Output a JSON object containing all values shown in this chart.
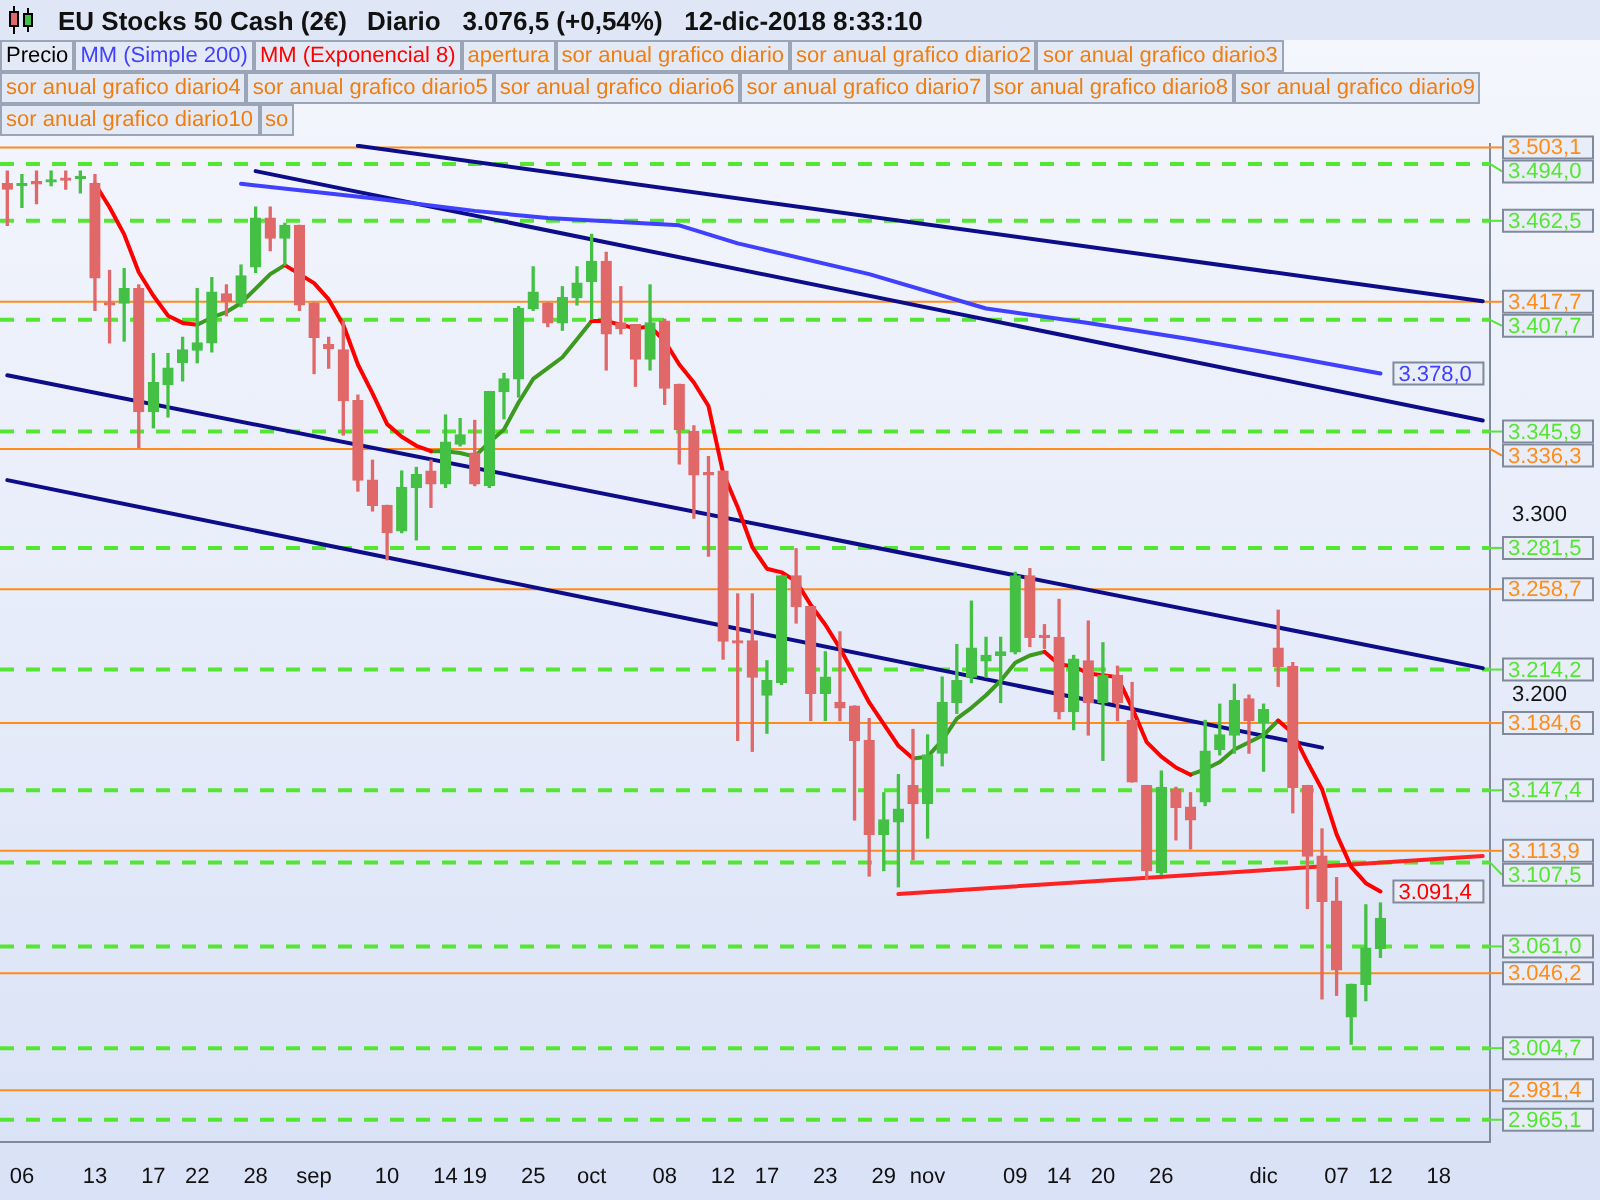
{
  "chart_data": {
    "type": "candlestick",
    "title": "EU Stocks 50 Cash (2€)",
    "subtitle": "Diario   3.076,5 (+0,54%)   12-dic-2018 8:33:10",
    "categories": [
      null,
      "06",
      null,
      null,
      null,
      null,
      "13",
      null,
      null,
      null,
      "17",
      null,
      null,
      "22",
      null,
      null,
      null,
      "28",
      null,
      null,
      null,
      "sep",
      null,
      null,
      null,
      null,
      "10",
      null,
      null,
      null,
      "14",
      null,
      "19",
      null,
      null,
      null,
      "25",
      null,
      null,
      null,
      "oct",
      null,
      null,
      null,
      null,
      "08",
      null,
      null,
      null,
      "12",
      null,
      null,
      "17",
      null,
      null,
      null,
      "23",
      null,
      null,
      null,
      "29",
      null,
      null,
      "nov",
      null,
      null,
      null,
      null,
      null,
      "09",
      null,
      null,
      "14",
      null,
      null,
      "20",
      null,
      null,
      null,
      "26",
      null,
      null,
      null,
      null,
      null,
      null,
      "dic",
      null,
      null,
      null,
      null,
      "07",
      null,
      null,
      "12",
      null,
      null,
      null,
      "18",
      null,
      null,
      null
    ],
    "ylim": [
      2953,
      3505
    ],
    "yticks": [
      {
        "value": 3200,
        "label": "3.200"
      },
      {
        "value": 3300,
        "label": "3.300"
      }
    ],
    "legend": "top left",
    "marker": "none",
    "series": [
      {
        "name": "Precio",
        "ohlc": [
          [
            3483,
            3490,
            3460,
            3480
          ],
          [
            3482,
            3488,
            3470,
            3483
          ],
          [
            3484,
            3490,
            3472,
            3483
          ],
          [
            3484,
            3490,
            3482,
            3485
          ],
          [
            3486,
            3490,
            3480,
            3485
          ],
          [
            3486,
            3490,
            3478,
            3487
          ],
          [
            3483,
            3488,
            3413,
            3431
          ],
          [
            3417,
            3435,
            3395,
            3416
          ],
          [
            3417,
            3436,
            3396,
            3425
          ],
          [
            3425,
            3427,
            3337,
            3357
          ],
          [
            3357,
            3389,
            3348,
            3373
          ],
          [
            3372,
            3389,
            3354,
            3381
          ],
          [
            3384,
            3398,
            3374,
            3391
          ],
          [
            3391,
            3425,
            3384,
            3395
          ],
          [
            3395,
            3431,
            3390,
            3423
          ],
          [
            3422,
            3427,
            3410,
            3418
          ],
          [
            3417,
            3438,
            3415,
            3432
          ],
          [
            3437,
            3470,
            3434,
            3464
          ],
          [
            3464,
            3470,
            3446,
            3453
          ],
          [
            3453,
            3461,
            3438,
            3460
          ],
          [
            3460,
            3460,
            3413,
            3416
          ],
          [
            3417,
            3417,
            3378,
            3398
          ],
          [
            3394,
            3398,
            3381,
            3392
          ],
          [
            3391,
            3407,
            3344,
            3363
          ],
          [
            3363,
            3366,
            3313,
            3319
          ],
          [
            3319,
            3330,
            3302,
            3305
          ],
          [
            3305,
            3305,
            3275,
            3290
          ],
          [
            3291,
            3324,
            3290,
            3315
          ],
          [
            3315,
            3326,
            3286,
            3322
          ],
          [
            3324,
            3330,
            3304,
            3317
          ],
          [
            3317,
            3355,
            3315,
            3340
          ],
          [
            3339,
            3353,
            3338,
            3344
          ],
          [
            3334,
            3352,
            3316,
            3317
          ],
          [
            3316,
            3368,
            3315,
            3368
          ],
          [
            3368,
            3378,
            3353,
            3375
          ],
          [
            3375,
            3415,
            3365,
            3414
          ],
          [
            3414,
            3437,
            3413,
            3423
          ],
          [
            3417,
            3417,
            3404,
            3406
          ],
          [
            3406,
            3426,
            3402,
            3420
          ],
          [
            3420,
            3437,
            3416,
            3428
          ],
          [
            3429,
            3455,
            3408,
            3440
          ],
          [
            3440,
            3445,
            3380,
            3400
          ],
          [
            3406,
            3426,
            3400,
            3403
          ],
          [
            3405,
            3405,
            3371,
            3386
          ],
          [
            3386,
            3427,
            3380,
            3406
          ],
          [
            3407,
            3408,
            3361,
            3370
          ],
          [
            3372,
            3372,
            3328,
            3347
          ],
          [
            3346,
            3349,
            3298,
            3322
          ],
          [
            3323,
            3332,
            3277,
            3322
          ],
          [
            3324,
            3324,
            3220,
            3230
          ],
          [
            3230,
            3256,
            3175,
            3229
          ],
          [
            3230,
            3256,
            3169,
            3210
          ],
          [
            3200,
            3219,
            3179,
            3208
          ],
          [
            3207,
            3266,
            3206,
            3266
          ],
          [
            3266,
            3281,
            3240,
            3249
          ],
          [
            3249,
            3249,
            3186,
            3201
          ],
          [
            3201,
            3224,
            3186,
            3210
          ],
          [
            3196,
            3235,
            3186,
            3193
          ],
          [
            3194,
            3194,
            3131,
            3175
          ],
          [
            3175,
            3187,
            3100,
            3123
          ],
          [
            3123,
            3146,
            3103,
            3131
          ],
          [
            3130,
            3156,
            3094,
            3137
          ],
          [
            3150,
            3181,
            3109,
            3140
          ],
          [
            3140,
            3178,
            3121,
            3167
          ],
          [
            3168,
            3210,
            3161,
            3196
          ],
          [
            3196,
            3228,
            3190,
            3208
          ],
          [
            3210,
            3252,
            3207,
            3226
          ],
          [
            3219,
            3232,
            3210,
            3222
          ],
          [
            3222,
            3232,
            3196,
            3224
          ],
          [
            3224,
            3268,
            3223,
            3266
          ],
          [
            3266,
            3270,
            3227,
            3232
          ],
          [
            3233,
            3239,
            3226,
            3232
          ],
          [
            3232,
            3253,
            3187,
            3191
          ],
          [
            3191,
            3222,
            3181,
            3220
          ],
          [
            3219,
            3241,
            3178,
            3196
          ],
          [
            3196,
            3229,
            3164,
            3211
          ],
          [
            3211,
            3216,
            3186,
            3196
          ],
          [
            3186,
            3207,
            3152,
            3152
          ],
          [
            3150,
            3150,
            3098,
            3103
          ],
          [
            3102,
            3158,
            3101,
            3149
          ],
          [
            3148,
            3149,
            3120,
            3138
          ],
          [
            3138,
            3146,
            3115,
            3131
          ],
          [
            3141,
            3186,
            3139,
            3169
          ],
          [
            3170,
            3195,
            3167,
            3178
          ],
          [
            3178,
            3206,
            3168,
            3197
          ],
          [
            3198,
            3200,
            3168,
            3186
          ],
          [
            3185,
            3195,
            3158,
            3192
          ],
          [
            3226,
            3247,
            3205,
            3216
          ],
          [
            3216,
            3218,
            3135,
            3149
          ],
          [
            3150,
            3150,
            3082,
            3111
          ],
          [
            3111,
            3126,
            3032,
            3086
          ],
          [
            3086,
            3099,
            3034,
            3048
          ],
          [
            3022,
            3040,
            3007,
            3040
          ],
          [
            3040,
            3084,
            3031,
            3060
          ],
          [
            3060,
            3085,
            3055,
            3076.5
          ],
          null,
          null,
          null,
          null,
          null,
          null,
          null
        ],
        "colors": [
          "#e06868",
          "#44c044",
          "#e06868",
          "#44c044",
          "#e06868",
          "#44c044",
          "#e06868",
          "#e06868",
          "#44c044",
          "#e06868",
          "#44c044",
          "#44c044",
          "#44c044",
          "#44c044",
          "#44c044",
          "#e06868",
          "#44c044",
          "#44c044",
          "#e06868",
          "#44c044",
          "#e06868",
          "#e06868",
          "#e06868",
          "#e06868",
          "#e06868",
          "#e06868",
          "#e06868",
          "#44c044",
          "#44c044",
          "#e06868",
          "#44c044",
          "#44c044",
          "#e06868",
          "#44c044",
          "#44c044",
          "#44c044",
          "#44c044",
          "#e06868",
          "#44c044",
          "#44c044",
          "#44c044",
          "#e06868",
          "#e06868",
          "#e06868",
          "#44c044",
          "#e06868",
          "#e06868",
          "#e06868",
          "#e06868",
          "#e06868",
          "#e06868",
          "#e06868",
          "#44c044",
          "#44c044",
          "#e06868",
          "#e06868",
          "#44c044",
          "#e06868",
          "#e06868",
          "#e06868",
          "#44c044",
          "#44c044",
          "#e06868",
          "#44c044",
          "#44c044",
          "#44c044",
          "#44c044",
          "#44c044",
          "#44c044",
          "#44c044",
          "#e06868",
          "#e06868",
          "#e06868",
          "#44c044",
          "#e06868",
          "#44c044",
          "#e06868",
          "#e06868",
          "#e06868",
          "#44c044",
          "#e06868",
          "#e06868",
          "#44c044",
          "#44c044",
          "#44c044",
          "#e06868",
          "#44c044",
          "#e06868",
          "#e06868",
          "#e06868",
          "#e06868",
          "#e06868",
          "#44c044",
          "#44c044",
          "#44c044",
          null,
          null,
          null,
          null,
          null,
          null,
          null
        ]
      },
      {
        "name": "MM (Simple 200)",
        "type": "line",
        "color": "#4040ff",
        "values": [
          null,
          null,
          null,
          null,
          null,
          null,
          null,
          null,
          null,
          null,
          null,
          null,
          null,
          null,
          null,
          null,
          3483,
          null,
          null,
          null,
          null,
          null,
          null,
          null,
          null,
          3475,
          null,
          null,
          null,
          null,
          null,
          null,
          3468,
          null,
          null,
          null,
          null,
          3464,
          null,
          null,
          null,
          null,
          null,
          null,
          null,
          null,
          3460,
          null,
          null,
          null,
          3450,
          null,
          null,
          null,
          null,
          null,
          null,
          null,
          null,
          3433,
          null,
          null,
          null,
          null,
          null,
          null,
          null,
          3414,
          null,
          null,
          null,
          null,
          null,
          null,
          3406,
          null,
          null,
          null,
          null,
          null,
          null,
          3397,
          null,
          null,
          null,
          null,
          null,
          null,
          3387,
          null,
          null,
          null,
          null,
          null,
          3378,
          null,
          null,
          null,
          null,
          null,
          null,
          null
        ],
        "value_labels": [
          null,
          null,
          null,
          null,
          null,
          null,
          null,
          null,
          null,
          null,
          null,
          null,
          null,
          null,
          null,
          null,
          null,
          null,
          null,
          null,
          null,
          null,
          null,
          null,
          null,
          null,
          null,
          null,
          null,
          null,
          null,
          null,
          null,
          null,
          null,
          null,
          null,
          null,
          null,
          null,
          null,
          null,
          null,
          null,
          null,
          null,
          null,
          null,
          null,
          null,
          null,
          null,
          null,
          null,
          null,
          null,
          null,
          null,
          null,
          null,
          null,
          null,
          null,
          null,
          null,
          null,
          null,
          null,
          null,
          null,
          null,
          null,
          null,
          null,
          null,
          null,
          null,
          null,
          null,
          null,
          null,
          null,
          null,
          null,
          null,
          null,
          null,
          null,
          null,
          null,
          null,
          null,
          null,
          null,
          "3.378,0",
          null,
          null,
          null,
          null,
          null,
          null,
          null
        ]
      },
      {
        "name": "MM (Exponencial 8)",
        "type": "line",
        "color": "#ff0000",
        "values": [
          null,
          null,
          null,
          null,
          null,
          null,
          3483,
          3470,
          3455,
          3434,
          3421,
          3410,
          3406,
          3405,
          null,
          null,
          null,
          null,
          null,
          3438,
          3433,
          3428,
          3419,
          3405,
          3383,
          3367,
          3350,
          3343,
          3338,
          3335,
          null,
          null,
          null,
          null,
          null,
          null,
          null,
          null,
          null,
          null,
          3407,
          3407,
          3405,
          3403,
          3404,
          3396,
          3383,
          3373,
          3360,
          3323,
          3304,
          3282,
          3270,
          3268,
          3263,
          3250,
          3239,
          3226,
          3211,
          3196,
          3184,
          3172,
          3165,
          null,
          null,
          null,
          null,
          null,
          null,
          null,
          null,
          3224,
          3217,
          3216,
          3212,
          3211,
          3210,
          3193,
          3174,
          3166,
          3160,
          3156,
          null,
          null,
          null,
          null,
          null,
          3186,
          3179,
          3163,
          3148,
          3123,
          3105,
          3096,
          3091.4,
          null,
          null,
          null,
          null,
          null,
          null,
          null
        ],
        "value_labels": [
          null,
          null,
          null,
          null,
          null,
          null,
          null,
          null,
          null,
          null,
          null,
          null,
          null,
          null,
          null,
          null,
          null,
          null,
          null,
          null,
          null,
          null,
          null,
          null,
          null,
          null,
          null,
          null,
          null,
          null,
          null,
          null,
          null,
          null,
          null,
          null,
          null,
          null,
          null,
          null,
          null,
          null,
          null,
          null,
          null,
          null,
          null,
          null,
          null,
          null,
          null,
          null,
          null,
          null,
          null,
          null,
          null,
          null,
          null,
          null,
          null,
          null,
          null,
          null,
          null,
          null,
          null,
          null,
          null,
          null,
          null,
          null,
          null,
          null,
          null,
          null,
          null,
          null,
          null,
          null,
          null,
          null,
          null,
          null,
          null,
          null,
          null,
          null,
          null,
          null,
          null,
          null,
          null,
          null,
          "3.091,4",
          null,
          null,
          null,
          null,
          null,
          null,
          null
        ]
      },
      {
        "type": "line",
        "color": "#3c9a1e",
        "values": [
          null,
          null,
          null,
          null,
          null,
          null,
          null,
          null,
          null,
          null,
          null,
          null,
          null,
          3405,
          3409,
          3412,
          3417,
          3425,
          3433,
          3438,
          null,
          null,
          null,
          null,
          null,
          null,
          null,
          null,
          null,
          3335,
          3335,
          3334,
          3332,
          3340,
          3347,
          3362,
          3375,
          3381,
          3387,
          3397,
          3407,
          null,
          null,
          null,
          null,
          null,
          null,
          null,
          null,
          null,
          null,
          null,
          null,
          null,
          null,
          null,
          null,
          null,
          null,
          null,
          null,
          null,
          3165,
          3166,
          3175,
          3187,
          3193,
          3200,
          3208,
          3218,
          3222,
          3224,
          null,
          null,
          null,
          null,
          null,
          null,
          null,
          null,
          null,
          3156,
          3159,
          3163,
          3170,
          3174,
          3178,
          3186,
          null,
          null,
          null,
          null,
          null,
          null,
          null,
          null,
          null,
          null,
          null,
          null,
          null,
          null
        ]
      },
      {
        "type": "line",
        "color": "#0d0d8a",
        "values": [
          null,
          null,
          null,
          null,
          null,
          null,
          null,
          null,
          null,
          null,
          null,
          null,
          null,
          null,
          null,
          null,
          null,
          null,
          null,
          null,
          null,
          null,
          null,
          null,
          3504,
          null,
          null,
          null,
          null,
          null,
          null,
          null,
          null,
          null,
          null,
          null,
          null,
          null,
          null,
          null,
          null,
          null,
          null,
          null,
          null,
          null,
          null,
          null,
          null,
          null,
          null,
          null,
          null,
          null,
          null,
          null,
          null,
          null,
          null,
          null,
          null,
          null,
          null,
          null,
          null,
          null,
          null,
          null,
          null,
          null,
          null,
          null,
          null,
          null,
          null,
          null,
          null,
          null,
          null,
          null,
          null,
          null,
          null,
          null,
          null,
          null,
          null,
          null,
          null,
          null,
          null,
          null,
          null,
          null,
          null,
          null,
          null,
          null,
          null,
          null,
          null,
          3418
        ]
      },
      {
        "type": "line",
        "color": "#0d0d8a",
        "values": [
          null,
          null,
          null,
          null,
          null,
          null,
          null,
          null,
          null,
          null,
          null,
          null,
          null,
          null,
          null,
          null,
          null,
          3490,
          null,
          null,
          null,
          null,
          null,
          null,
          null,
          null,
          null,
          null,
          null,
          null,
          null,
          null,
          null,
          null,
          null,
          null,
          null,
          null,
          null,
          null,
          null,
          null,
          null,
          null,
          null,
          null,
          null,
          null,
          null,
          null,
          null,
          null,
          null,
          null,
          null,
          null,
          null,
          null,
          null,
          null,
          null,
          null,
          null,
          null,
          null,
          null,
          null,
          null,
          null,
          null,
          null,
          null,
          null,
          null,
          null,
          null,
          null,
          null,
          null,
          null,
          null,
          null,
          null,
          null,
          null,
          null,
          null,
          null,
          null,
          null,
          null,
          null,
          null,
          null,
          null,
          null,
          null,
          null,
          null,
          null,
          null,
          3352
        ]
      },
      {
        "type": "line",
        "color": "#0d0d8a",
        "values": [
          3377,
          null,
          null,
          null,
          null,
          null,
          null,
          null,
          null,
          null,
          null,
          null,
          null,
          null,
          null,
          null,
          null,
          null,
          null,
          null,
          null,
          null,
          null,
          null,
          null,
          null,
          null,
          null,
          null,
          null,
          null,
          null,
          null,
          null,
          null,
          null,
          null,
          null,
          null,
          null,
          null,
          null,
          null,
          null,
          null,
          null,
          null,
          null,
          null,
          null,
          null,
          null,
          null,
          null,
          null,
          null,
          null,
          null,
          null,
          null,
          null,
          null,
          null,
          null,
          null,
          null,
          null,
          null,
          null,
          null,
          null,
          null,
          null,
          null,
          null,
          null,
          null,
          null,
          null,
          null,
          null,
          null,
          null,
          null,
          null,
          null,
          null,
          null,
          null,
          null,
          null,
          null,
          null,
          null,
          null,
          null,
          null,
          null,
          null,
          null,
          null,
          3215
        ]
      },
      {
        "type": "line",
        "color": "#0d0d8a",
        "values": [
          3319,
          null,
          null,
          null,
          null,
          null,
          null,
          null,
          null,
          null,
          null,
          null,
          null,
          null,
          null,
          null,
          null,
          null,
          null,
          null,
          null,
          null,
          null,
          null,
          null,
          null,
          null,
          null,
          null,
          null,
          null,
          null,
          null,
          null,
          null,
          null,
          null,
          null,
          null,
          null,
          null,
          null,
          null,
          null,
          null,
          null,
          null,
          null,
          null,
          null,
          null,
          null,
          null,
          null,
          null,
          null,
          null,
          null,
          null,
          null,
          null,
          null,
          null,
          null,
          null,
          null,
          null,
          null,
          null,
          null,
          null,
          null,
          null,
          null,
          null,
          null,
          null,
          null,
          null,
          null,
          null,
          null,
          null,
          null,
          null,
          null,
          null,
          null,
          null,
          null,
          3171,
          null,
          null,
          null,
          null,
          null,
          null,
          null,
          null,
          null,
          null,
          null
        ]
      },
      {
        "type": "line",
        "color": "#ff2222",
        "values": [
          null,
          null,
          null,
          null,
          null,
          null,
          null,
          null,
          null,
          null,
          null,
          null,
          null,
          null,
          null,
          null,
          null,
          null,
          null,
          null,
          null,
          null,
          null,
          null,
          null,
          null,
          null,
          null,
          null,
          null,
          null,
          null,
          null,
          null,
          null,
          null,
          null,
          null,
          null,
          null,
          null,
          null,
          null,
          null,
          null,
          null,
          null,
          null,
          null,
          null,
          null,
          null,
          null,
          null,
          null,
          null,
          null,
          null,
          null,
          null,
          null,
          3090,
          null,
          null,
          null,
          null,
          null,
          null,
          null,
          null,
          null,
          null,
          null,
          null,
          null,
          null,
          null,
          null,
          null,
          null,
          null,
          null,
          null,
          null,
          null,
          null,
          null,
          null,
          null,
          null,
          null,
          null,
          null,
          null,
          null,
          null,
          null,
          null,
          null,
          null,
          null,
          3111
        ]
      }
    ],
    "ref_lines": [
      {
        "axis": "y",
        "value": 3503.1,
        "label": "3.503,1",
        "color": "#ff8c1a",
        "line_style": "solid"
      },
      {
        "axis": "y",
        "value": 3494.0,
        "label": "3.494,0",
        "color": "#55e633",
        "line_style": "dashed"
      },
      {
        "axis": "y",
        "value": 3462.5,
        "label": "3.462,5",
        "color": "#55e633",
        "line_style": "dashed"
      },
      {
        "axis": "y",
        "value": 3417.7,
        "label": "3.417,7",
        "color": "#ff8c1a",
        "line_style": "solid"
      },
      {
        "axis": "y",
        "value": 3407.7,
        "label": "3.407,7",
        "color": "#55e633",
        "line_style": "dashed"
      },
      {
        "axis": "y",
        "value": 3345.9,
        "label": "3.345,9",
        "color": "#55e633",
        "line_style": "dashed"
      },
      {
        "axis": "y",
        "value": 3336.3,
        "label": "3.336,3",
        "color": "#ff8c1a",
        "line_style": "solid"
      },
      {
        "axis": "y",
        "value": 3281.5,
        "label": "3.281,5",
        "color": "#55e633",
        "line_style": "dashed"
      },
      {
        "axis": "y",
        "value": 3258.7,
        "label": "3.258,7",
        "color": "#ff8c1a",
        "line_style": "solid"
      },
      {
        "axis": "y",
        "value": 3214.2,
        "label": "3.214,2",
        "color": "#55e633",
        "line_style": "dashed"
      },
      {
        "axis": "y",
        "value": 3184.6,
        "label": "3.184,6",
        "color": "#ff8c1a",
        "line_style": "solid"
      },
      {
        "axis": "y",
        "value": 3147.4,
        "label": "3.147,4",
        "color": "#55e633",
        "line_style": "dashed"
      },
      {
        "axis": "y",
        "value": 3113.9,
        "label": "3.113,9",
        "color": "#ff8c1a",
        "line_style": "solid"
      },
      {
        "axis": "y",
        "value": 3107.5,
        "label": "3.107,5",
        "color": "#55e633",
        "line_style": "dashed"
      },
      {
        "axis": "y",
        "value": 3061.0,
        "label": "3.061,0",
        "color": "#55e633",
        "line_style": "dashed"
      },
      {
        "axis": "y",
        "value": 3046.2,
        "label": "3.046,2",
        "color": "#ff8c1a",
        "line_style": "solid"
      },
      {
        "axis": "y",
        "value": 3004.7,
        "label": "3.004,7",
        "color": "#55e633",
        "line_style": "dashed"
      },
      {
        "axis": "y",
        "value": 2981.4,
        "label": "2.981,4",
        "color": "#ff8c1a",
        "line_style": "solid"
      },
      {
        "axis": "y",
        "value": 2965.1,
        "label": "2.965,1",
        "color": "#55e633",
        "line_style": "dashed"
      }
    ],
    "annotations": [
      "apertura",
      "sor anual grafico diario",
      "sor anual grafico diario2",
      "sor anual grafico diario3",
      "sor anual grafico diario4",
      "sor anual grafico diario5",
      "sor anual grafico diario6",
      "sor anual grafico diario7",
      "sor anual grafico diario8",
      "sor anual grafico diario9",
      "sor anual grafico diario10",
      "so"
    ]
  }
}
